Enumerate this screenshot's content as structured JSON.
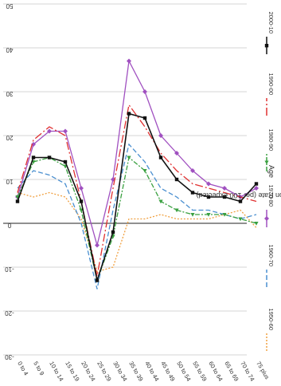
{
  "chart_data": {
    "type": "line",
    "orientation": "rotated-90",
    "xlabel": "Age",
    "ylabel": "Net Migration Rate (per 100 expected)",
    "categories": [
      "0 to 4",
      "5 to 9",
      "10 to 14",
      "15 to 19",
      "20 to 24",
      "25 to 29",
      "30 to 34",
      "35 to 39",
      "40 to 44",
      "45 to 49",
      "50 to 54",
      "55 to 59",
      "60 to 64",
      "65 to 69",
      "70 to 74",
      "75 plus"
    ],
    "y_ticks": [
      "50",
      "40",
      "30",
      "20",
      "10",
      "0",
      "-10",
      "-20",
      "-30"
    ],
    "ylim": [
      -30,
      50
    ],
    "grid": true,
    "legend_position": "right",
    "series": [
      {
        "name": "1950-60",
        "color": "#f0a040",
        "dash": "2,2",
        "marker": "none",
        "values": [
          7,
          6,
          7,
          6,
          1,
          -11,
          -10,
          1,
          1,
          2,
          1,
          1,
          1,
          2,
          3,
          -1
        ]
      },
      {
        "name": "1960-70",
        "color": "#4a8fd0",
        "dash": "6,3",
        "marker": "none",
        "values": [
          8,
          12,
          11,
          9,
          0,
          -15,
          3,
          18,
          14,
          8,
          6,
          3,
          3,
          2,
          1,
          2
        ]
      },
      {
        "name": "1970-80",
        "color": "#a050c0",
        "dash": "",
        "marker": "diamond",
        "values": [
          6,
          18,
          21,
          21,
          8,
          -5,
          10,
          37,
          30,
          20,
          16,
          12,
          9,
          8,
          6,
          8
        ]
      },
      {
        "name": "1980-90",
        "color": "#3aa040",
        "dash": "6,2,2,2",
        "marker": "triangle",
        "values": [
          6,
          14,
          15,
          13,
          3,
          -13,
          -3,
          15,
          12,
          5,
          3,
          2,
          2,
          2,
          1,
          0
        ]
      },
      {
        "name": "1990-00",
        "color": "#e03030",
        "dash": "10,3,2,3",
        "marker": "none",
        "values": [
          7,
          19,
          22,
          20,
          5,
          -12,
          8,
          27,
          22,
          16,
          12,
          9,
          8,
          7,
          6,
          5
        ]
      },
      {
        "name": "2000-10",
        "color": "#111111",
        "dash": "",
        "marker": "square",
        "values": [
          5,
          15,
          15,
          14,
          5,
          -13,
          -2,
          25,
          24,
          15,
          10,
          7,
          6,
          6,
          5,
          9
        ]
      }
    ]
  }
}
